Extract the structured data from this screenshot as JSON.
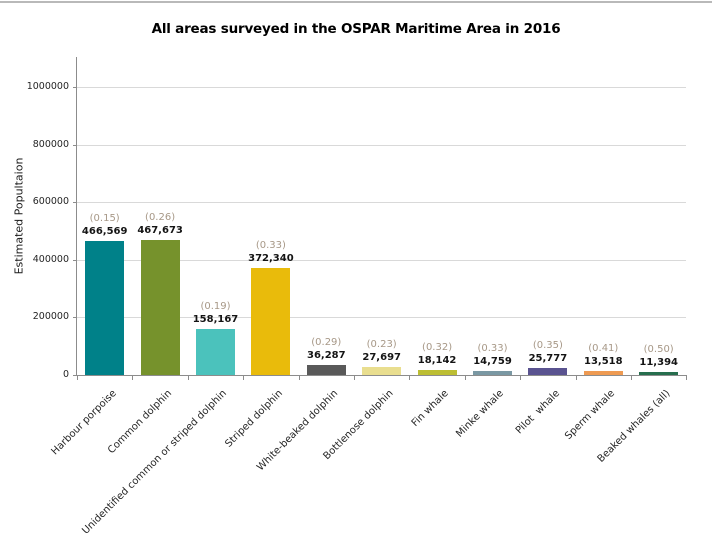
{
  "chart_data": {
    "type": "bar",
    "title": "All areas surveyed in the OSPAR Maritime Area in 2016",
    "xlabel": "",
    "ylabel": "Estimated Popultaion",
    "ylim": [
      0,
      1100000
    ],
    "grid": true,
    "legend": false,
    "yticks": [
      0,
      200000,
      400000,
      600000,
      800000,
      1000000
    ],
    "ytick_labels": [
      "0",
      "200000",
      "400000",
      "600000",
      "800000",
      "1000000"
    ],
    "categories": [
      "Harbour porpoise",
      "Common dolphin",
      "Unidentified common or striped dolphin",
      "Striped dolphin",
      "White-beaked dolphin",
      "Bottlenose dolphin",
      "Fin whale",
      "Minke whale",
      "Pilot  whale",
      "Sperm whale",
      "Beaked whales (all)"
    ],
    "values": [
      466569,
      467673,
      158167,
      372340,
      36287,
      27697,
      18142,
      14759,
      25777,
      13518,
      11394
    ],
    "value_labels": [
      "466,569",
      "467,673",
      "158,167",
      "372,340",
      "36,287",
      "27,697",
      "18,142",
      "14,759",
      "25,777",
      "13,518",
      "11,394"
    ],
    "cv_labels": [
      "(0.15)",
      "(0.26)",
      "(0.19)",
      "(0.33)",
      "(0.29)",
      "(0.23)",
      "(0.32)",
      "(0.33)",
      "(0.35)",
      "(0.41)",
      "(0.50)"
    ],
    "bar_colors": [
      "#008189",
      "#76922C",
      "#4BC2BC",
      "#E9BB0B",
      "#595959",
      "#E9DE8F",
      "#BCBE33",
      "#7A98A3",
      "#5A5390",
      "#EE9A52",
      "#276E4E"
    ],
    "colors": {
      "value_label": "#141414",
      "cv_label": "#A79887",
      "axis_line": "#8C8C8C",
      "gridline": "#D9D9D9",
      "tick_label": "#262626",
      "title": "#000000",
      "background": "#FFFFFF"
    }
  }
}
